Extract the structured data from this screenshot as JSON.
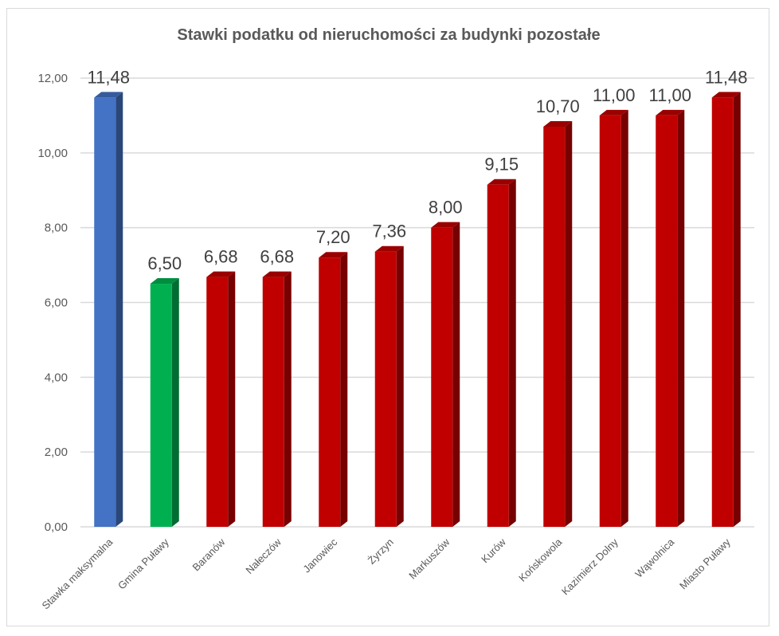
{
  "chart_data": {
    "type": "bar",
    "title": "Stawki podatku od nieruchomości za budynki pozostałe",
    "categories": [
      "Stawka maksymalna",
      "Gmina Puławy",
      "Baranów",
      "Nałeczów",
      "Janowiec",
      "Żyrzyn",
      "Markuszów",
      "Kurów",
      "Końskowola",
      "Kazimierz Dolny",
      "Wąwolnica",
      "Miasto Puławy"
    ],
    "values": [
      11.48,
      6.5,
      6.68,
      6.68,
      7.2,
      7.36,
      8.0,
      9.15,
      10.7,
      11.0,
      11.0,
      11.48
    ],
    "value_labels": [
      "11,48",
      "6,50",
      "6,68",
      "6,68",
      "7,20",
      "7,36",
      "8,00",
      "9,15",
      "10,70",
      "11,00",
      "11,00",
      "11,48"
    ],
    "bar_colors": [
      "#4472c4",
      "#00b050",
      "#c00000",
      "#c00000",
      "#c00000",
      "#c00000",
      "#c00000",
      "#c00000",
      "#c00000",
      "#c00000",
      "#c00000",
      "#c00000"
    ],
    "ylim": [
      0,
      12
    ],
    "yticks": [
      0,
      2,
      4,
      6,
      8,
      10,
      12
    ],
    "ytick_labels": [
      "0,00",
      "2,00",
      "4,00",
      "6,00",
      "8,00",
      "10,00",
      "12,00"
    ],
    "xlabel": "",
    "ylabel": "",
    "grid": true,
    "legend": "none"
  }
}
